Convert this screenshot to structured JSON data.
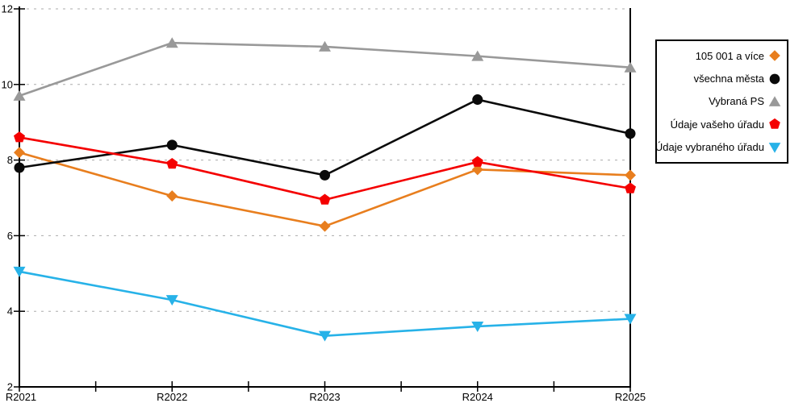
{
  "chart_data": {
    "type": "line",
    "title": "",
    "xlabel": "",
    "ylabel": "",
    "categories": [
      "R2021",
      "R2022",
      "R2023",
      "R2024",
      "R2025"
    ],
    "series": [
      {
        "name": "105 001 a více",
        "marker": "diamond",
        "color": "#E87E1E",
        "values": [
          8.2,
          7.05,
          6.25,
          7.75,
          7.6
        ]
      },
      {
        "name": "všechna města",
        "marker": "circle",
        "color": "#0A0A0A",
        "values": [
          7.8,
          8.4,
          7.6,
          9.6,
          8.7
        ]
      },
      {
        "name": "Vybraná PS",
        "marker": "triangle-up",
        "color": "#999999",
        "values": [
          9.7,
          11.1,
          11.0,
          10.75,
          10.45
        ]
      },
      {
        "name": "Údaje vašeho úřadu",
        "marker": "pentagon",
        "color": "#F40000",
        "values": [
          8.6,
          7.9,
          6.95,
          7.95,
          7.25
        ]
      },
      {
        "name": "Údaje vybraného úřadu",
        "marker": "triangle-down",
        "color": "#27B2E8",
        "values": [
          5.05,
          4.3,
          3.35,
          3.6,
          3.8
        ]
      }
    ],
    "ylim": [
      2,
      12
    ],
    "ytick_step": 2,
    "ytick_labels": [
      "2",
      "4",
      "6",
      "8",
      "10",
      "12"
    ],
    "grid": "horizontal-dashed",
    "grid_color": "#ABABAB",
    "axis_color": "#000000",
    "background_color": "#FFFFFF",
    "legend_position": "right",
    "has_minor_x_ticks": true
  }
}
